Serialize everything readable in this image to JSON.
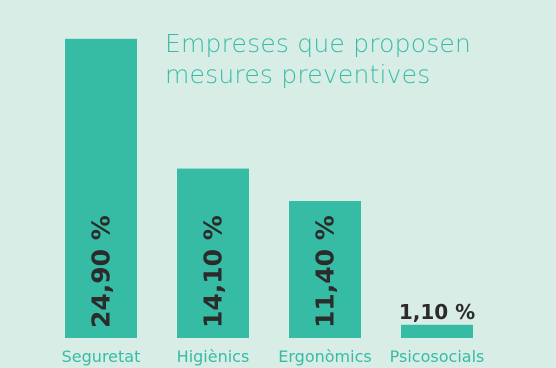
{
  "chart_data": {
    "type": "bar",
    "title_lines": [
      "Empreses que proposen",
      "mesures preventives"
    ],
    "categories": [
      "Seguretat",
      "Higiènics",
      "Ergonòmics",
      "Psicosocials"
    ],
    "values": [
      24.9,
      14.1,
      11.4,
      1.1
    ],
    "value_labels": [
      "24,90 %",
      "14,10 %",
      "11,40 %",
      "1,10 %"
    ],
    "ylim": [
      0,
      26.3
    ],
    "grid": false,
    "legend": "none",
    "colors": {
      "bar": "#36bca5",
      "background": "#d9ede7",
      "value_label": "#2b2b2b",
      "category_label": "#36bca5",
      "title": "#36bca5"
    }
  }
}
